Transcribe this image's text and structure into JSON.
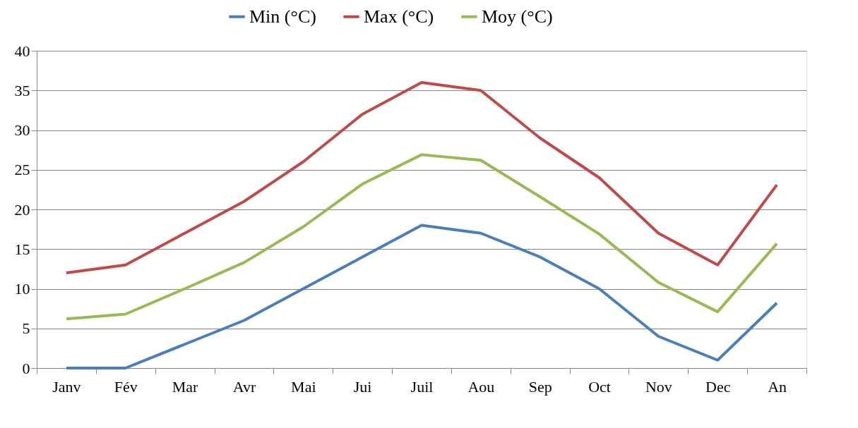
{
  "chart_data": {
    "type": "line",
    "categories": [
      "Janv",
      "Fév",
      "Mar",
      "Avr",
      "Mai",
      "Jui",
      "Juil",
      "Aou",
      "Sep",
      "Oct",
      "Nov",
      "Dec",
      "An"
    ],
    "series": [
      {
        "name": "Min (°C)",
        "color": "#4a7ebb",
        "values": [
          0,
          0,
          3,
          6,
          10,
          14,
          18,
          17,
          14,
          10,
          4,
          1,
          8.2
        ]
      },
      {
        "name": "Max (°C)",
        "color": "#be4b48",
        "values": [
          12,
          13,
          17,
          21,
          26,
          32,
          36,
          35,
          29,
          24,
          17,
          13,
          23.1
        ]
      },
      {
        "name": "Moy (°C)",
        "color": "#98b954",
        "values": [
          6.2,
          6.8,
          10,
          13.3,
          17.8,
          23.2,
          26.9,
          26.2,
          21.6,
          16.9,
          10.8,
          7.1,
          15.7
        ]
      }
    ],
    "ylim": [
      0,
      40
    ],
    "yticks": [
      0,
      5,
      10,
      15,
      20,
      25,
      30,
      35,
      40
    ],
    "grid": "y",
    "legend": "top",
    "marker": "none",
    "line_style": "solid"
  }
}
